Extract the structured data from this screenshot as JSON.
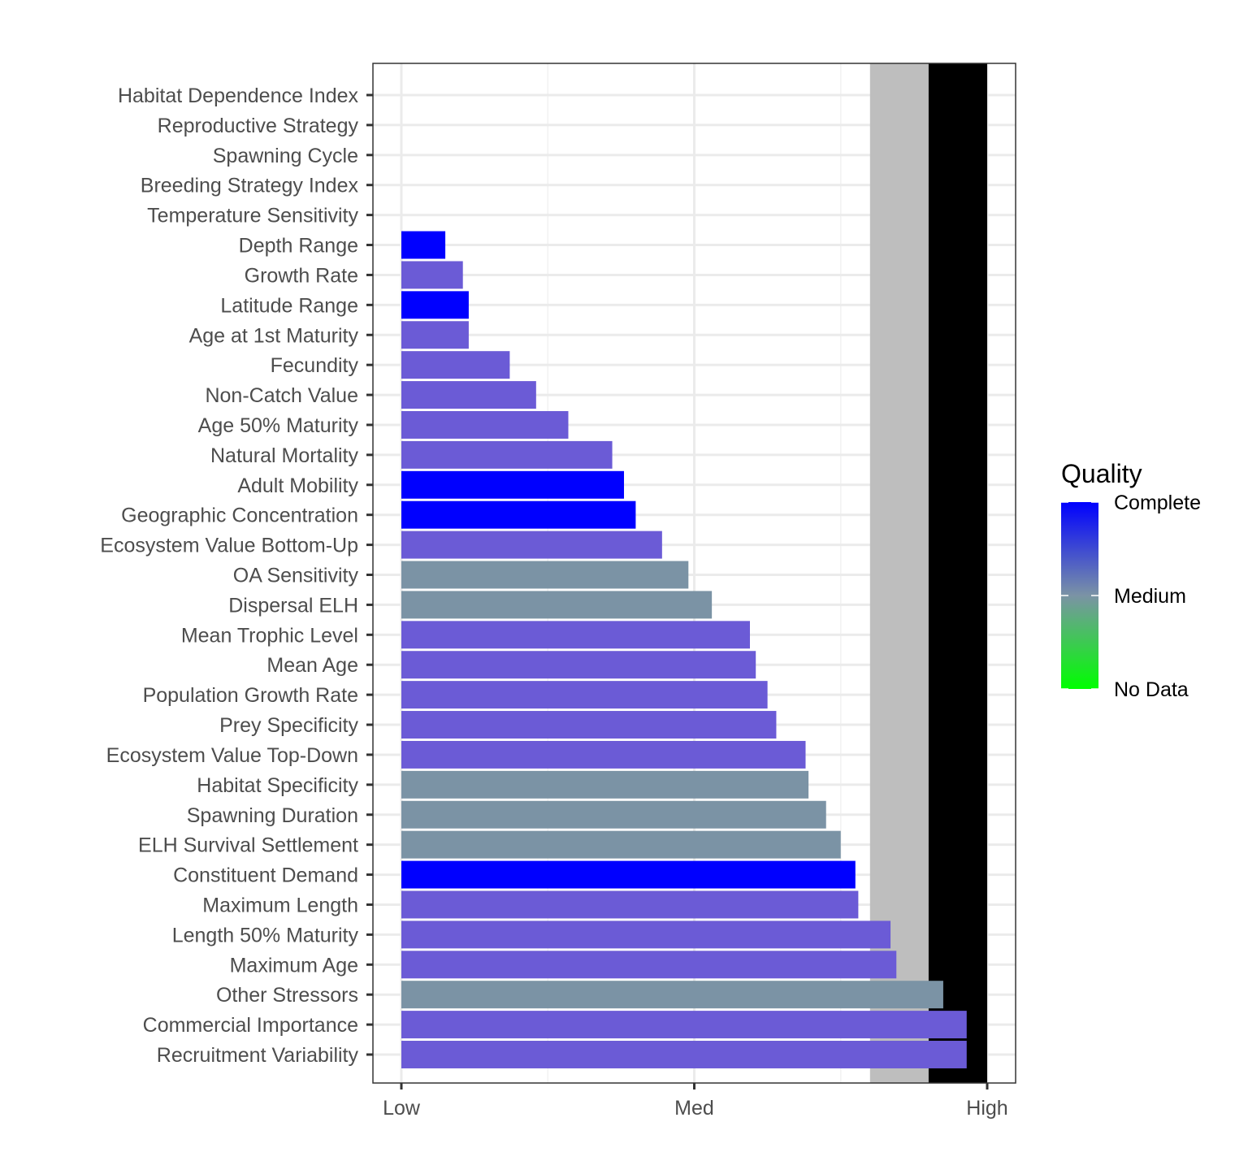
{
  "chart_data": {
    "type": "bar",
    "orientation": "horizontal",
    "title": "",
    "xlabel": "",
    "ylabel": "",
    "x_ticks": [
      {
        "label": "Low",
        "value": 0
      },
      {
        "label": "Med",
        "value": 1
      },
      {
        "label": "High",
        "value": 2
      }
    ],
    "xlim": [
      -0.1,
      2.1
    ],
    "grid": true,
    "shaded_bands": [
      {
        "from": 1.6,
        "to": 1.8,
        "color": "#bebebe"
      },
      {
        "from": 1.8,
        "to": 2.0,
        "color": "#000000"
      }
    ],
    "categories": [
      "Habitat Dependence Index",
      "Reproductive Strategy",
      "Spawning Cycle",
      "Breeding Strategy Index",
      "Temperature Sensitivity",
      "Depth Range",
      "Growth Rate",
      "Latitude Range",
      "Age at 1st Maturity",
      "Fecundity",
      "Non-Catch Value",
      "Age 50% Maturity",
      "Natural Mortality",
      "Adult Mobility",
      "Geographic Concentration",
      "Ecosystem Value Bottom-Up",
      "OA Sensitivity",
      "Dispersal ELH",
      "Mean Trophic Level",
      "Mean Age",
      "Population Growth Rate",
      "Prey Specificity",
      "Ecosystem Value Top-Down",
      "Habitat Specificity",
      "Spawning Duration",
      "ELH Survival Settlement",
      "Constituent Demand",
      "Maximum Length",
      "Length 50% Maturity",
      "Maximum Age",
      "Other Stressors",
      "Commercial Importance",
      "Recruitment Variability"
    ],
    "values": [
      null,
      null,
      null,
      null,
      null,
      0.15,
      0.21,
      0.23,
      0.23,
      0.37,
      0.46,
      0.57,
      0.72,
      0.76,
      0.8,
      0.89,
      0.98,
      1.06,
      1.19,
      1.21,
      1.25,
      1.28,
      1.38,
      1.39,
      1.45,
      1.5,
      1.55,
      1.56,
      1.67,
      1.69,
      1.85,
      1.93,
      1.93
    ],
    "quality": [
      null,
      null,
      null,
      null,
      null,
      "Complete",
      "High",
      "Complete",
      "High",
      "High",
      "High",
      "High",
      "High",
      "Complete",
      "Complete",
      "High",
      "Medium",
      "Medium",
      "High",
      "High",
      "High",
      "High",
      "High",
      "Medium",
      "Medium",
      "Medium",
      "Complete",
      "High",
      "High",
      "High",
      "Medium",
      "High",
      "High"
    ],
    "quality_colors": {
      "Complete": "#0000ff",
      "High": "#6b5bd6",
      "Medium": "#7b93a5"
    },
    "legend": {
      "title": "Quality",
      "position": "right",
      "labels": [
        "Complete",
        "Medium",
        "No Data"
      ],
      "gradient": [
        "#0000ff",
        "#7b93a5",
        "#00ff00"
      ]
    }
  }
}
